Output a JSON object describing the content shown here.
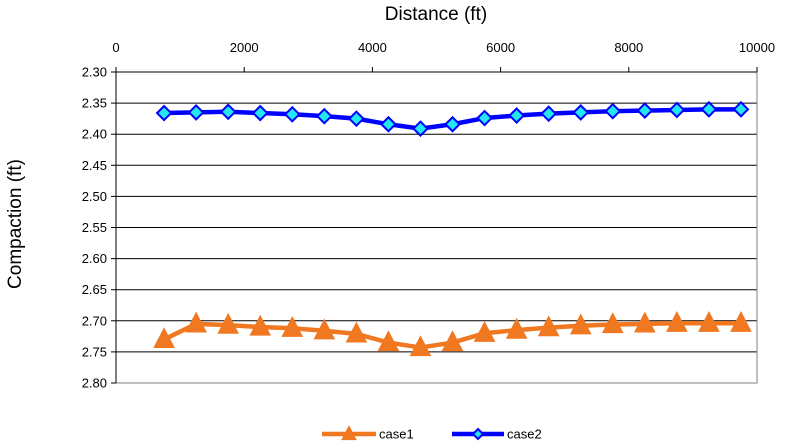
{
  "chart_data": {
    "type": "line",
    "xlabel": "Distance (ft)",
    "ylabel": "Compaction (ft)",
    "xlim": [
      0,
      10000
    ],
    "ylim": [
      2.3,
      2.8
    ],
    "y_reversed": true,
    "x_axis_position": "top",
    "x_ticks": [
      "0",
      "2000",
      "4000",
      "6000",
      "8000",
      "10000"
    ],
    "x_tick_values": [
      0,
      2000,
      4000,
      6000,
      8000,
      10000
    ],
    "y_ticks": [
      "2.30",
      "2.35",
      "2.40",
      "2.45",
      "2.50",
      "2.55",
      "2.60",
      "2.65",
      "2.70",
      "2.75",
      "2.80"
    ],
    "y_tick_values": [
      2.3,
      2.35,
      2.4,
      2.45,
      2.5,
      2.55,
      2.6,
      2.65,
      2.7,
      2.75,
      2.8
    ],
    "grid": "horizontal",
    "legend_position": "bottom-center",
    "x": [
      750,
      1250,
      1750,
      2250,
      2750,
      3250,
      3750,
      4250,
      4750,
      5250,
      5750,
      6250,
      6750,
      7250,
      7750,
      8250,
      8750,
      9250,
      9750
    ],
    "series": [
      {
        "name": "case1",
        "color": "#F07820",
        "marker": "triangle",
        "marker_color": "#F07820",
        "values": [
          2.73,
          2.705,
          2.707,
          2.71,
          2.712,
          2.716,
          2.721,
          2.735,
          2.743,
          2.735,
          2.72,
          2.715,
          2.711,
          2.708,
          2.706,
          2.705,
          2.704,
          2.704,
          2.704
        ]
      },
      {
        "name": "case2",
        "color": "#0000FF",
        "marker": "diamond",
        "marker_color": "#22E6F0",
        "values": [
          2.366,
          2.365,
          2.364,
          2.366,
          2.368,
          2.371,
          2.375,
          2.384,
          2.391,
          2.384,
          2.374,
          2.37,
          2.367,
          2.365,
          2.363,
          2.362,
          2.361,
          2.36,
          2.36
        ]
      }
    ]
  }
}
